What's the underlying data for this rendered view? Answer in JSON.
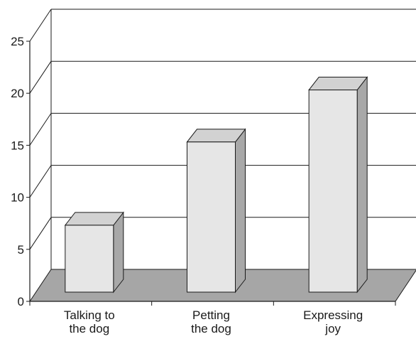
{
  "chart_data": {
    "type": "bar",
    "categories": [
      [
        "Talking to",
        "the dog"
      ],
      [
        "Petting",
        "the dog"
      ],
      [
        "Expressing",
        "joy"
      ]
    ],
    "values": [
      8,
      16,
      21
    ],
    "ylim": [
      0,
      25
    ],
    "yticks": [
      "0",
      "5",
      "10",
      "15",
      "20",
      "25"
    ],
    "grid": true,
    "style": "3d-column",
    "colors": {
      "bar_front": "#e6e6e6",
      "bar_top": "#d2d2d2",
      "bar_side": "#a8a8a8",
      "floor": "#a6a6a6",
      "line": "#1a1a1a"
    }
  }
}
